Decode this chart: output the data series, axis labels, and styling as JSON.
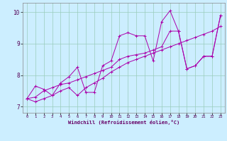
{
  "title": "",
  "xlabel": "Windchill (Refroidissement éolien,°C)",
  "ylabel": "",
  "bg_color": "#cceeff",
  "line_color": "#aa00aa",
  "grid_color": "#99ccbb",
  "xlim": [
    -0.5,
    23.5
  ],
  "ylim": [
    6.8,
    10.3
  ],
  "yticks": [
    7,
    8,
    9,
    10
  ],
  "xticks": [
    0,
    1,
    2,
    3,
    4,
    5,
    6,
    7,
    8,
    9,
    10,
    11,
    12,
    13,
    14,
    15,
    16,
    17,
    18,
    19,
    20,
    21,
    22,
    23
  ],
  "series": [
    [
      7.25,
      7.65,
      7.55,
      7.35,
      7.75,
      7.95,
      8.25,
      7.45,
      7.45,
      8.3,
      8.45,
      9.25,
      9.35,
      9.25,
      9.25,
      8.45,
      9.7,
      10.05,
      9.4,
      8.2,
      8.3,
      8.6,
      8.6,
      9.9
    ],
    [
      7.25,
      7.15,
      7.25,
      7.35,
      7.5,
      7.6,
      7.35,
      7.6,
      7.75,
      7.9,
      8.1,
      8.25,
      8.4,
      8.5,
      8.6,
      8.7,
      8.8,
      8.9,
      9.0,
      9.1,
      9.2,
      9.3,
      9.4,
      9.55
    ],
    [
      7.25,
      7.3,
      7.5,
      7.6,
      7.7,
      7.75,
      7.85,
      7.95,
      8.05,
      8.15,
      8.25,
      8.5,
      8.6,
      8.65,
      8.7,
      8.8,
      8.9,
      9.4,
      9.4,
      8.2,
      8.3,
      8.6,
      8.6,
      9.9
    ]
  ]
}
